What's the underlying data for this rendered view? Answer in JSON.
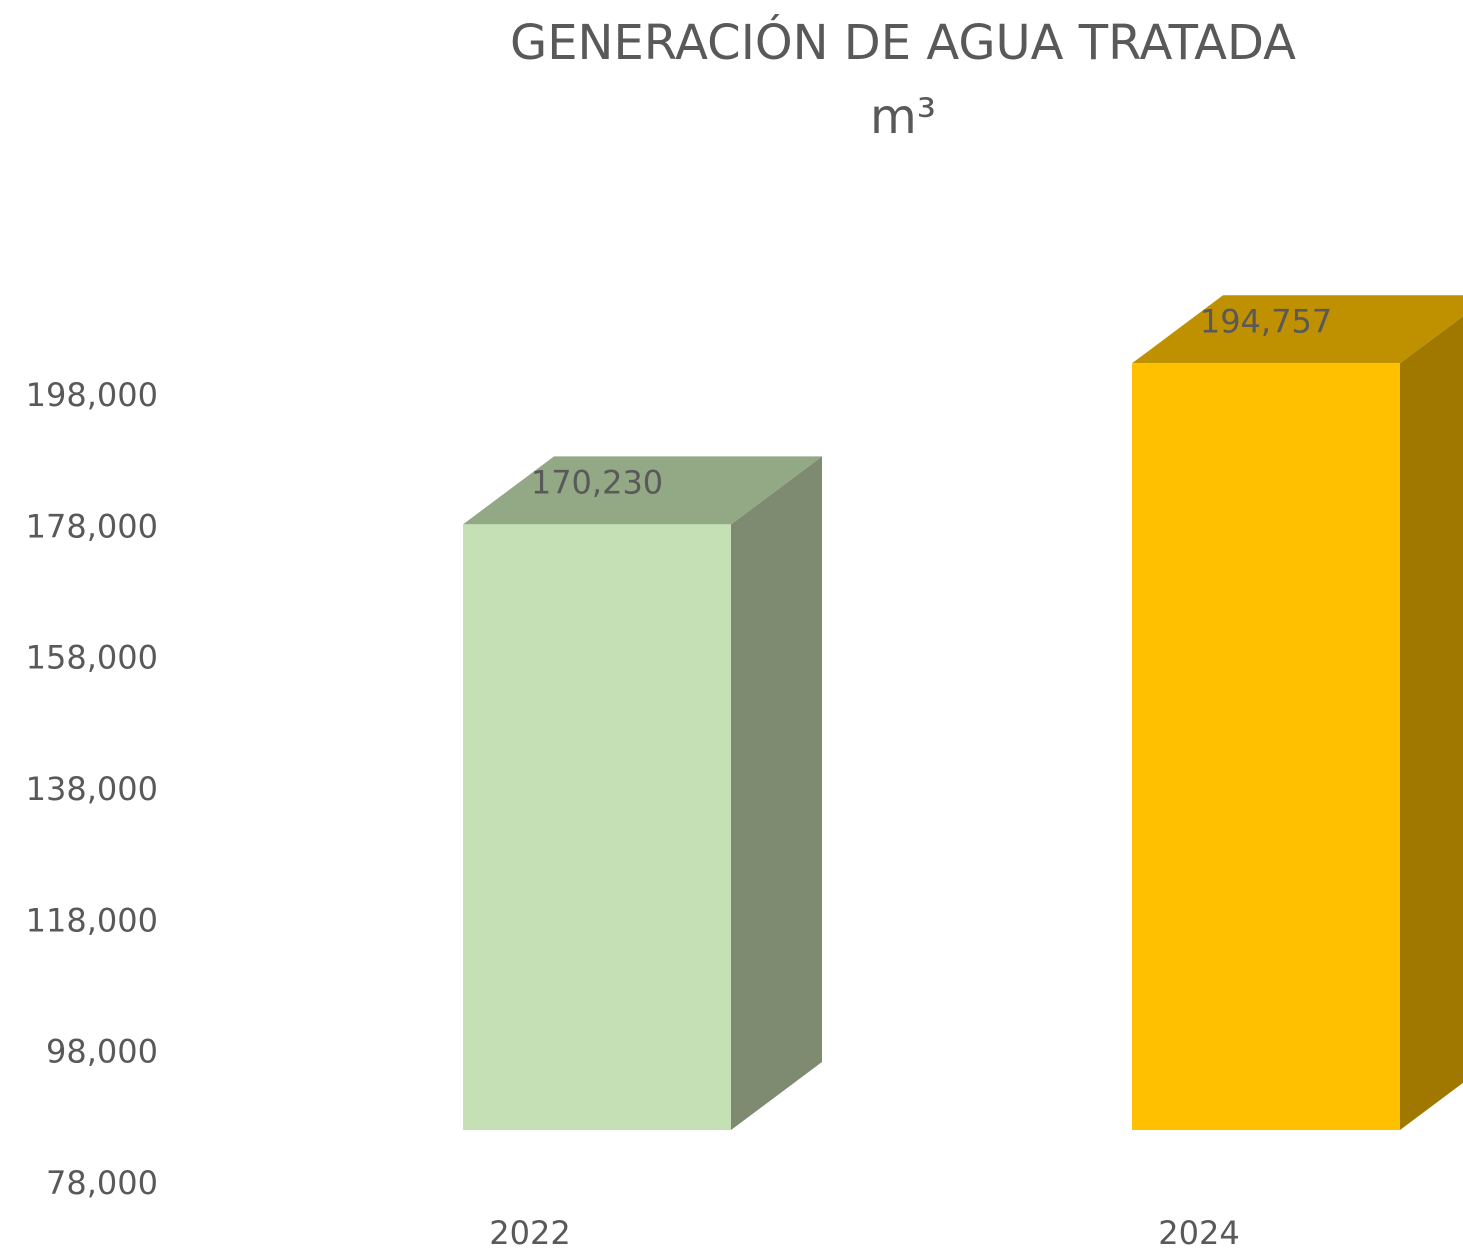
{
  "chart_data": {
    "type": "bar3d",
    "title": "GENERACIÓN DE AGUA TRATADA",
    "subtitle": "m³",
    "categories": [
      "2022",
      "2024"
    ],
    "values": [
      170230,
      194757
    ],
    "value_labels": [
      "170,230",
      "194,757"
    ],
    "colors": [
      {
        "front": "#c5e0b4",
        "top": "#93a986",
        "side": "#7f8b71"
      },
      {
        "front": "#ffc000",
        "top": "#bf9000",
        "side": "#a07800"
      }
    ],
    "ylim": [
      78000,
      198000
    ],
    "yticks": [
      {
        "value": 78000,
        "label": "78,000"
      },
      {
        "value": 98000,
        "label": "98,000"
      },
      {
        "value": 118000,
        "label": "118,000"
      },
      {
        "value": 138000,
        "label": "138,000"
      },
      {
        "value": 158000,
        "label": "158,000"
      },
      {
        "value": 178000,
        "label": "178,000"
      },
      {
        "value": 198000,
        "label": "198,000"
      }
    ],
    "grid": false
  }
}
